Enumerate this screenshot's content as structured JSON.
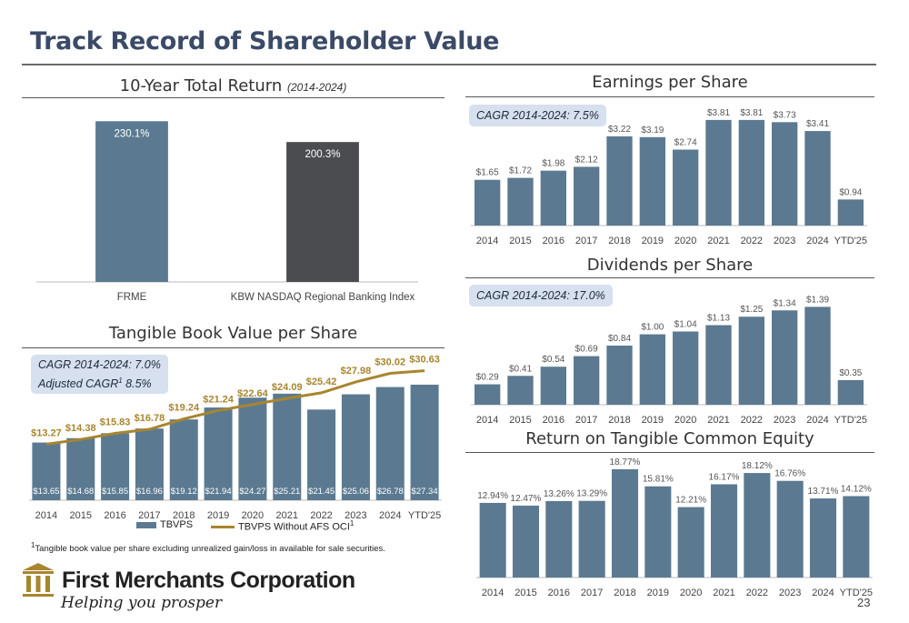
{
  "title": "Track Record of Shareholder Value",
  "panels": {
    "total_return": {
      "title": "10-Year Total Return",
      "subtitle": "(2014-2024)"
    },
    "eps": {
      "title": "Earnings per Share",
      "cagr": "CAGR 2014-2024: 7.5%"
    },
    "dps": {
      "title": "Dividends per Share",
      "cagr": "CAGR 2014-2024: 17.0%"
    },
    "tbv": {
      "title": "Tangible Book Value per Share",
      "cagr_line1": "CAGR 2014-2024: 7.0%",
      "cagr_line2_pre": "Adjusted CAGR",
      "cagr_line2_sup": "1",
      "cagr_line2_post": " 8.5%"
    },
    "rotce": {
      "title": "Return on Tangible Common Equity"
    }
  },
  "footnote": {
    "sup": "1",
    "text": "Tangible book value per share excluding unrealized gain/loss in available for sale securities."
  },
  "logo": {
    "name": "First Merchants Corporation",
    "tagline": "Helping you prosper"
  },
  "page_number": "23",
  "colors": {
    "bar": "#5b7a91",
    "bar_dark": "#4a4c50",
    "line": "#a8852e",
    "title": "#3b4a66",
    "cagr_box": "#d6e0ee"
  },
  "icons": {
    "logo": "building-columns-icon"
  },
  "chart_data": [
    {
      "id": "total_return",
      "type": "bar",
      "title": "10-Year Total Return (2014-2024)",
      "categories": [
        "FRME",
        "KBW NASDAQ Regional Banking Index"
      ],
      "values": [
        230.1,
        200.3
      ],
      "labels": [
        "230.1%",
        "200.3%"
      ],
      "bar_colors": [
        "#5b7a91",
        "#4a4c50"
      ],
      "ylim": [
        0,
        250
      ]
    },
    {
      "id": "eps",
      "type": "bar",
      "title": "Earnings per Share",
      "categories": [
        "2014",
        "2015",
        "2016",
        "2017",
        "2018",
        "2019",
        "2020",
        "2021",
        "2022",
        "2023",
        "2024",
        "YTD'25"
      ],
      "values": [
        1.65,
        1.72,
        1.98,
        2.12,
        3.22,
        3.19,
        2.74,
        3.81,
        3.81,
        3.73,
        3.41,
        0.94
      ],
      "labels": [
        "$1.65",
        "$1.72",
        "$1.98",
        "$2.12",
        "$3.22",
        "$3.19",
        "$2.74",
        "$3.81",
        "$3.81",
        "$3.73",
        "$3.41",
        "$0.94"
      ],
      "ylim": [
        0,
        4.2
      ]
    },
    {
      "id": "dps",
      "type": "bar",
      "title": "Dividends per Share",
      "categories": [
        "2014",
        "2015",
        "2016",
        "2017",
        "2018",
        "2019",
        "2020",
        "2021",
        "2022",
        "2023",
        "2024",
        "YTD'25"
      ],
      "values": [
        0.29,
        0.41,
        0.54,
        0.69,
        0.84,
        1.0,
        1.04,
        1.13,
        1.25,
        1.34,
        1.39,
        0.35
      ],
      "labels": [
        "$0.29",
        "$0.41",
        "$0.54",
        "$0.69",
        "$0.84",
        "$1.00",
        "$1.04",
        "$1.13",
        "$1.25",
        "$1.34",
        "$1.39",
        "$0.35"
      ],
      "ylim": [
        0,
        1.55
      ]
    },
    {
      "id": "tbv",
      "type": "bar",
      "title": "Tangible Book Value per Share",
      "categories": [
        "2014",
        "2015",
        "2016",
        "2017",
        "2018",
        "2019",
        "2020",
        "2021",
        "2022",
        "2023",
        "2024",
        "YTD'25"
      ],
      "series": [
        {
          "name": "TBVPS",
          "kind": "bar",
          "values": [
            13.65,
            14.68,
            15.85,
            16.96,
            19.12,
            21.94,
            24.27,
            25.21,
            21.45,
            25.06,
            26.78,
            27.34
          ],
          "labels": [
            "$13.65",
            "$14.68",
            "$15.85",
            "$16.96",
            "$19.12",
            "$21.94",
            "$24.27",
            "$25.21",
            "$21.45",
            "$25.06",
            "$26.78",
            "$27.34"
          ]
        },
        {
          "name": "TBVPS Without AFS OCI",
          "name_sup": "1",
          "kind": "line",
          "values": [
            13.27,
            14.38,
            15.83,
            16.78,
            19.24,
            21.24,
            22.64,
            24.09,
            25.42,
            27.98,
            30.02,
            30.63
          ],
          "labels": [
            "$13.27",
            "$14.38",
            "$15.83",
            "$16.78",
            "$19.24",
            "$21.24",
            "$22.64",
            "$24.09",
            "$25.42",
            "$27.98",
            "$30.02",
            "$30.63"
          ]
        }
      ],
      "ylim": [
        0,
        34
      ]
    },
    {
      "id": "rotce",
      "type": "bar",
      "title": "Return on Tangible Common Equity",
      "categories": [
        "2014",
        "2015",
        "2016",
        "2017",
        "2018",
        "2019",
        "2020",
        "2021",
        "2022",
        "2023",
        "2024",
        "YTD'25"
      ],
      "values": [
        12.94,
        12.47,
        13.26,
        13.29,
        18.77,
        15.81,
        12.21,
        16.17,
        18.12,
        16.76,
        13.71,
        14.12
      ],
      "labels": [
        "12.94%",
        "12.47%",
        "13.26%",
        "13.29%",
        "18.77%",
        "15.81%",
        "12.21%",
        "16.17%",
        "18.12%",
        "16.76%",
        "13.71%",
        "14.12%"
      ],
      "ylim": [
        0,
        20.5
      ]
    }
  ]
}
